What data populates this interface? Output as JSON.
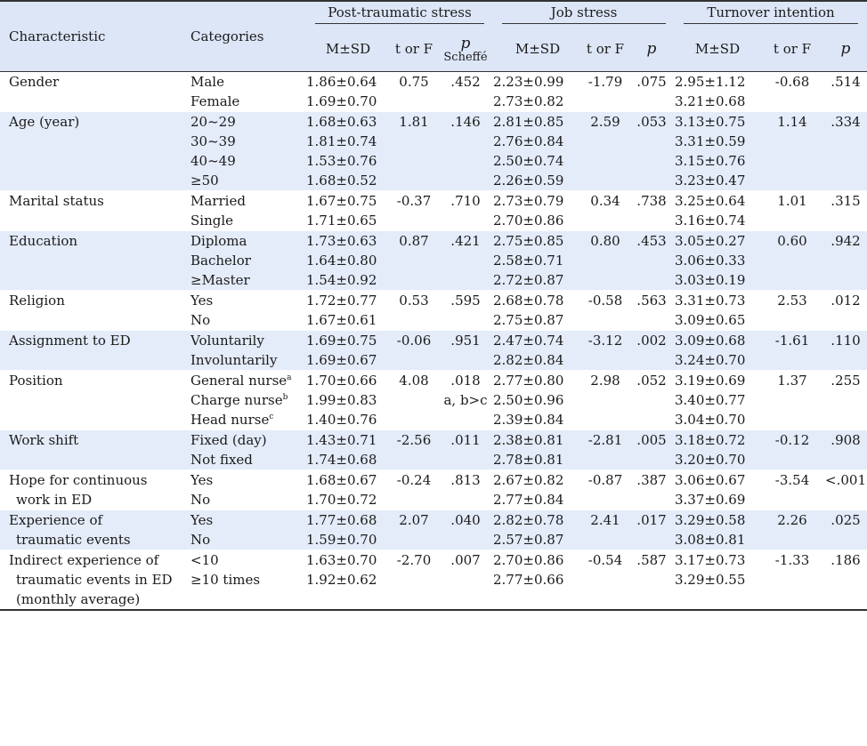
{
  "header": {
    "characteristic": "Characteristic",
    "categories": "Categories",
    "group_pts": "Post-traumatic stress",
    "group_js": "Job stress",
    "group_ti": "Turnover intention",
    "msd": "M±SD",
    "t_or_f": "t or F",
    "p": "p",
    "scheffe": "Scheffé"
  },
  "rows": [
    {
      "char": [
        "Gender"
      ],
      "cats": [
        "Male",
        "Female"
      ],
      "pts_m": [
        "1.86±0.64",
        "1.69±0.70"
      ],
      "pts_t": "0.75",
      "pts_p": ".452",
      "pts_s": "",
      "js_m": [
        "2.23±0.99",
        "2.73±0.82"
      ],
      "js_t": "-1.79",
      "js_p": ".075",
      "ti_m": [
        "2.95±1.12",
        "3.21±0.68"
      ],
      "ti_t": "-0.68",
      "ti_p": ".514"
    },
    {
      "char": [
        "Age (year)"
      ],
      "cats": [
        "20~29",
        "30~39",
        "40~49",
        "≥50"
      ],
      "pts_m": [
        "1.68±0.63",
        "1.81±0.74",
        "1.53±0.76",
        "1.68±0.52"
      ],
      "pts_t": "1.81",
      "pts_p": ".146",
      "pts_s": "",
      "js_m": [
        "2.81±0.85",
        "2.76±0.84",
        "2.50±0.74",
        "2.26±0.59"
      ],
      "js_t": "2.59",
      "js_p": ".053",
      "ti_m": [
        "3.13±0.75",
        "3.31±0.59",
        "3.15±0.76",
        "3.23±0.47"
      ],
      "ti_t": "1.14",
      "ti_p": ".334"
    },
    {
      "char": [
        "Marital status"
      ],
      "cats": [
        "Married",
        "Single"
      ],
      "pts_m": [
        "1.67±0.75",
        "1.71±0.65"
      ],
      "pts_t": "-0.37",
      "pts_p": ".710",
      "pts_s": "",
      "js_m": [
        "2.73±0.79",
        "2.70±0.86"
      ],
      "js_t": "0.34",
      "js_p": ".738",
      "ti_m": [
        "3.25±0.64",
        "3.16±0.74"
      ],
      "ti_t": "1.01",
      "ti_p": ".315"
    },
    {
      "char": [
        "Education"
      ],
      "cats": [
        "Diploma",
        "Bachelor",
        "≥Master"
      ],
      "pts_m": [
        "1.73±0.63",
        "1.64±0.80",
        "1.54±0.92"
      ],
      "pts_t": "0.87",
      "pts_p": ".421",
      "pts_s": "",
      "js_m": [
        "2.75±0.85",
        "2.58±0.71",
        "2.72±0.87"
      ],
      "js_t": "0.80",
      "js_p": ".453",
      "ti_m": [
        "3.05±0.27",
        "3.06±0.33",
        "3.03±0.19"
      ],
      "ti_t": "0.60",
      "ti_p": ".942"
    },
    {
      "char": [
        "Religion"
      ],
      "cats": [
        "Yes",
        "No"
      ],
      "pts_m": [
        "1.72±0.77",
        "1.67±0.61"
      ],
      "pts_t": "0.53",
      "pts_p": ".595",
      "pts_s": "",
      "js_m": [
        "2.68±0.78",
        "2.75±0.87"
      ],
      "js_t": "-0.58",
      "js_p": ".563",
      "ti_m": [
        "3.31±0.73",
        "3.09±0.65"
      ],
      "ti_t": "2.53",
      "ti_p": ".012"
    },
    {
      "char": [
        "Assignment to ED"
      ],
      "cats": [
        "Voluntarily",
        "Involuntarily"
      ],
      "pts_m": [
        "1.69±0.75",
        "1.69±0.67"
      ],
      "pts_t": "-0.06",
      "pts_p": ".951",
      "pts_s": "",
      "js_m": [
        "2.47±0.74",
        "2.82±0.84"
      ],
      "js_t": "-3.12",
      "js_p": ".002",
      "ti_m": [
        "3.09±0.68",
        "3.24±0.70"
      ],
      "ti_t": "-1.61",
      "ti_p": ".110"
    },
    {
      "char": [
        "Position"
      ],
      "cats": [
        "General nurse",
        "Charge nurse",
        "Head nurse"
      ],
      "cat_sups": [
        "a",
        "b",
        "c"
      ],
      "pts_m": [
        "1.70±0.66",
        "1.99±0.83",
        "1.40±0.76"
      ],
      "pts_t": "4.08",
      "pts_p": ".018",
      "pts_s": "a, b>c",
      "js_m": [
        "2.77±0.80",
        "2.50±0.96",
        "2.39±0.84"
      ],
      "js_t": "2.98",
      "js_p": ".052",
      "ti_m": [
        "3.19±0.69",
        "3.40±0.77",
        "3.04±0.70"
      ],
      "ti_t": "1.37",
      "ti_p": ".255"
    },
    {
      "char": [
        "Work shift"
      ],
      "cats": [
        "Fixed (day)",
        "Not fixed"
      ],
      "pts_m": [
        "1.43±0.71",
        "1.74±0.68"
      ],
      "pts_t": "-2.56",
      "pts_p": ".011",
      "pts_s": "",
      "js_m": [
        "2.38±0.81",
        "2.78±0.81"
      ],
      "js_t": "-2.81",
      "js_p": ".005",
      "ti_m": [
        "3.18±0.72",
        "3.20±0.70"
      ],
      "ti_t": "-0.12",
      "ti_p": ".908"
    },
    {
      "char": [
        "Hope for continuous",
        "work in ED"
      ],
      "cats": [
        "Yes",
        "No"
      ],
      "pts_m": [
        "1.68±0.67",
        "1.70±0.72"
      ],
      "pts_t": "-0.24",
      "pts_p": ".813",
      "pts_s": "",
      "js_m": [
        "2.67±0.82",
        "2.77±0.84"
      ],
      "js_t": "-0.87",
      "js_p": ".387",
      "ti_m": [
        "3.06±0.67",
        "3.37±0.69"
      ],
      "ti_t": "-3.54",
      "ti_p": "<.001"
    },
    {
      "char": [
        "Experience of",
        "traumatic events"
      ],
      "cats": [
        "Yes",
        "No"
      ],
      "pts_m": [
        "1.77±0.68",
        "1.59±0.70"
      ],
      "pts_t": "2.07",
      "pts_p": ".040",
      "pts_s": "",
      "js_m": [
        "2.82±0.78",
        "2.57±0.87"
      ],
      "js_t": "2.41",
      "js_p": ".017",
      "ti_m": [
        "3.29±0.58",
        "3.08±0.81"
      ],
      "ti_t": "2.26",
      "ti_p": ".025"
    },
    {
      "char": [
        "Indirect experience of",
        "traumatic events in ED",
        "(monthly average)"
      ],
      "cats": [
        "<10",
        "≥10 times"
      ],
      "pts_m": [
        "1.63±0.70",
        "1.92±0.62"
      ],
      "pts_t": "-2.70",
      "pts_p": ".007",
      "pts_s": "",
      "js_m": [
        "2.70±0.86",
        "2.77±0.66"
      ],
      "js_t": "-0.54",
      "js_p": ".587",
      "ti_m": [
        "3.17±0.73",
        "3.29±0.55"
      ],
      "ti_t": "-1.33",
      "ti_p": ".186"
    }
  ]
}
